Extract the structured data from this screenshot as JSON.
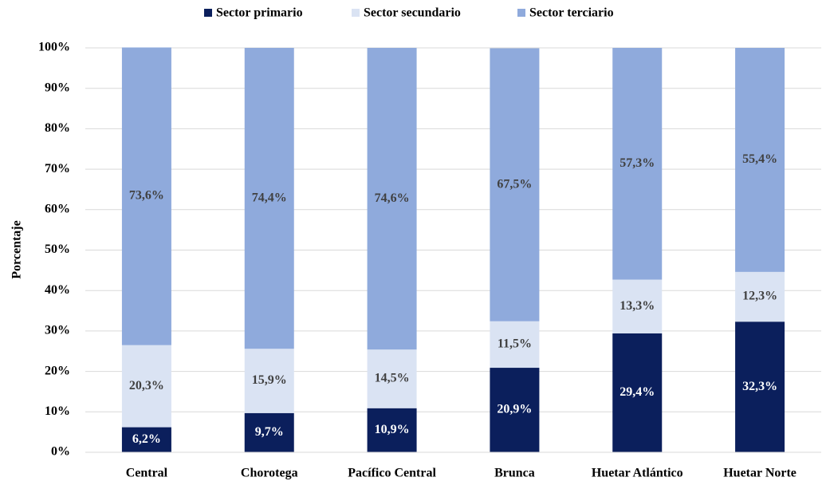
{
  "chart_data": {
    "type": "stacked_bar",
    "y_label": "Porcentaje",
    "categories": [
      "Central",
      "Chorotega",
      "Pacífico Central",
      "Brunca",
      "Huetar Atlántico",
      "Huetar Norte"
    ],
    "series": [
      {
        "name": "Sector primario",
        "color": "#0b1f5c",
        "label_color": "#ffffff",
        "values": [
          6.2,
          9.7,
          10.9,
          20.9,
          29.4,
          32.3
        ],
        "value_labels": [
          "6,2%",
          "9,7%",
          "10,9%",
          "20,9%",
          "29,4%",
          "32,3%"
        ]
      },
      {
        "name": "Sector secundario",
        "color": "#dae3f3",
        "label_color": "#404040",
        "values": [
          20.3,
          15.9,
          14.5,
          11.5,
          13.3,
          12.3
        ],
        "value_labels": [
          "20,3%",
          "15,9%",
          "14,5%",
          "11,5%",
          "13,3%",
          "12,3%"
        ]
      },
      {
        "name": "Sector terciario",
        "color": "#8faadc",
        "label_color": "#404040",
        "values": [
          73.6,
          74.4,
          74.6,
          67.5,
          57.3,
          55.4
        ],
        "value_labels": [
          "73,6%",
          "74,4%",
          "74,6%",
          "67,5%",
          "57,3%",
          "55,4%"
        ]
      }
    ],
    "ylim": [
      0,
      100
    ],
    "yticks": [
      {
        "value": 0,
        "label": "0%"
      },
      {
        "value": 10,
        "label": "10%"
      },
      {
        "value": 20,
        "label": "20%"
      },
      {
        "value": 30,
        "label": "30%"
      },
      {
        "value": 40,
        "label": "40%"
      },
      {
        "value": 50,
        "label": "50%"
      },
      {
        "value": 60,
        "label": "60%"
      },
      {
        "value": 70,
        "label": "70%"
      },
      {
        "value": 80,
        "label": "80%"
      },
      {
        "value": 90,
        "label": "90%"
      },
      {
        "value": 100,
        "label": "100%"
      }
    ],
    "grid": true,
    "legend": "top"
  }
}
